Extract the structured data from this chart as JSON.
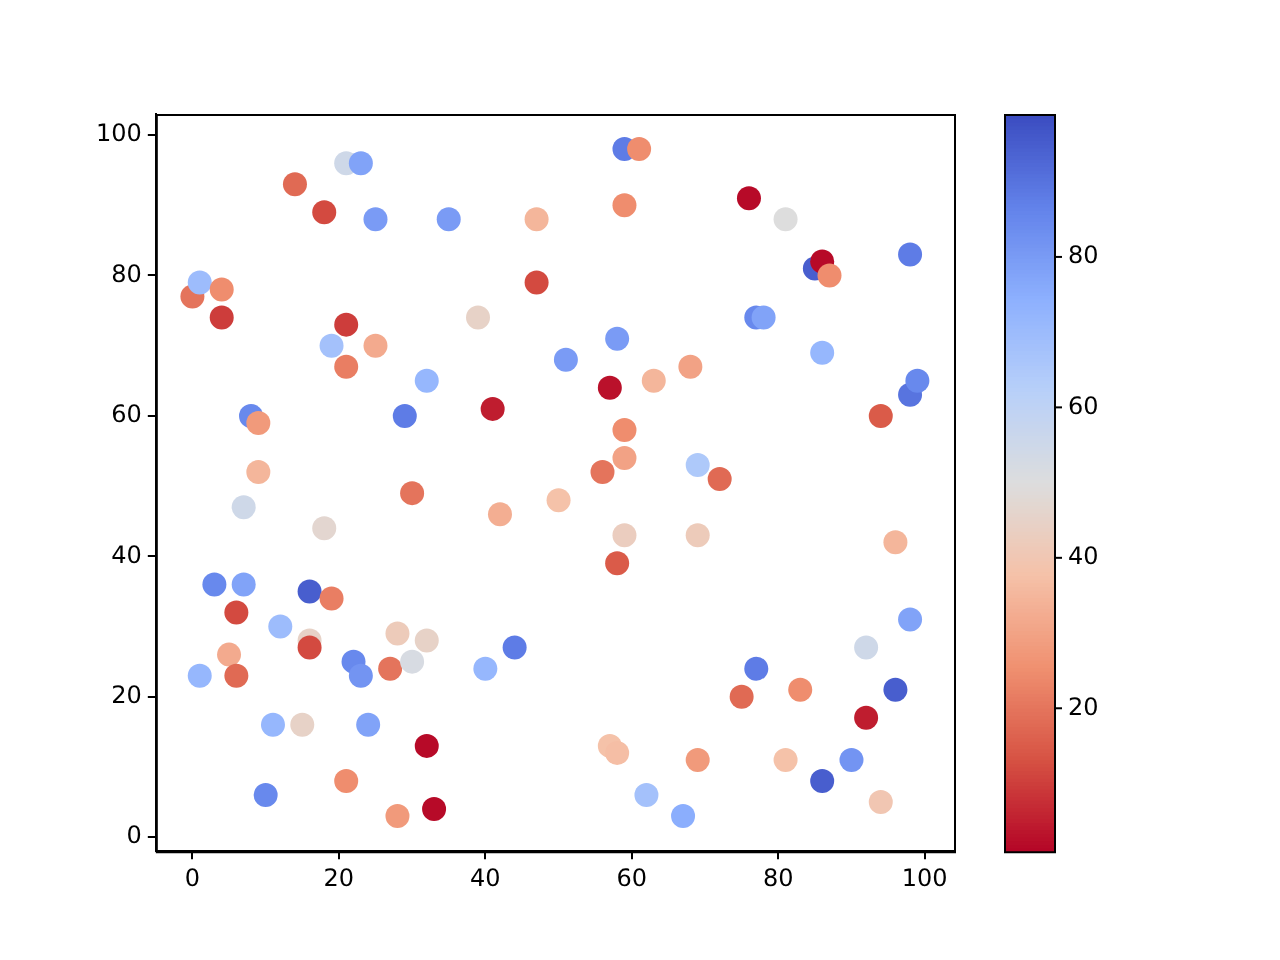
{
  "chart_data": {
    "type": "scatter",
    "marker": "circle",
    "grid": false,
    "legend": false,
    "xlim": [
      -5,
      104
    ],
    "ylim": [
      -2,
      103
    ],
    "xticks": [
      0,
      20,
      40,
      60,
      80,
      100
    ],
    "yticks": [
      0,
      20,
      40,
      60,
      80,
      100
    ],
    "clim": [
      1,
      99
    ],
    "cticks": [
      20,
      40,
      60,
      80
    ],
    "x": [
      0,
      1,
      4,
      4,
      14,
      18,
      21,
      23,
      25,
      35,
      47,
      47,
      39,
      21,
      19,
      25,
      21,
      32,
      41,
      29,
      8,
      9,
      9,
      51,
      59,
      61,
      76,
      81,
      59,
      98,
      85,
      86,
      87,
      77,
      78,
      58,
      86,
      57,
      63,
      68,
      98,
      99,
      94,
      59,
      59,
      56,
      69,
      72,
      7,
      18,
      30,
      42,
      50,
      3,
      7,
      16,
      19,
      6,
      12,
      16,
      16,
      28,
      32,
      5,
      6,
      1,
      22,
      23,
      27,
      30,
      40,
      44,
      11,
      15,
      24,
      32,
      21,
      10,
      28,
      33,
      59,
      69,
      58,
      96,
      98,
      92,
      77,
      75,
      83,
      96,
      92,
      57,
      58,
      69,
      81,
      90,
      86,
      94,
      62,
      67
    ],
    "values": [
      77,
      79,
      78,
      74,
      93,
      89,
      96,
      96,
      88,
      88,
      88,
      79,
      74,
      73,
      70,
      70,
      67,
      65,
      61,
      60,
      60,
      59,
      52,
      68,
      98,
      98,
      91,
      88,
      90,
      83,
      81,
      82,
      80,
      74,
      74,
      71,
      69,
      64,
      65,
      67,
      63,
      65,
      60,
      58,
      54,
      52,
      53,
      51,
      47,
      44,
      49,
      46,
      48,
      36,
      36,
      35,
      34,
      32,
      30,
      28,
      27,
      29,
      28,
      26,
      23,
      23,
      25,
      23,
      24,
      25,
      24,
      27,
      16,
      16,
      16,
      13,
      8,
      6,
      3,
      4,
      43,
      43,
      39,
      42,
      31,
      27,
      24,
      20,
      21,
      21,
      17,
      13,
      12,
      11,
      11,
      11,
      8,
      5,
      6,
      3
    ],
    "cvalues": [
      20,
      70,
      25,
      10,
      18,
      12,
      55,
      78,
      80,
      80,
      35,
      12,
      45,
      10,
      68,
      32,
      22,
      72,
      5,
      88,
      85,
      28,
      35,
      80,
      88,
      25,
      2,
      50,
      25,
      88,
      95,
      2,
      25,
      85,
      78,
      80,
      72,
      3,
      35,
      30,
      90,
      85,
      15,
      25,
      30,
      20,
      65,
      18,
      55,
      47,
      20,
      33,
      38,
      85,
      78,
      95,
      22,
      12,
      70,
      45,
      12,
      42,
      45,
      32,
      18,
      72,
      85,
      82,
      20,
      52,
      72,
      88,
      72,
      45,
      78,
      2,
      25,
      85,
      28,
      2,
      43,
      42,
      15,
      35,
      78,
      55,
      88,
      18,
      25,
      95,
      5,
      38,
      37,
      28,
      38,
      82,
      95,
      40,
      68,
      75
    ]
  }
}
